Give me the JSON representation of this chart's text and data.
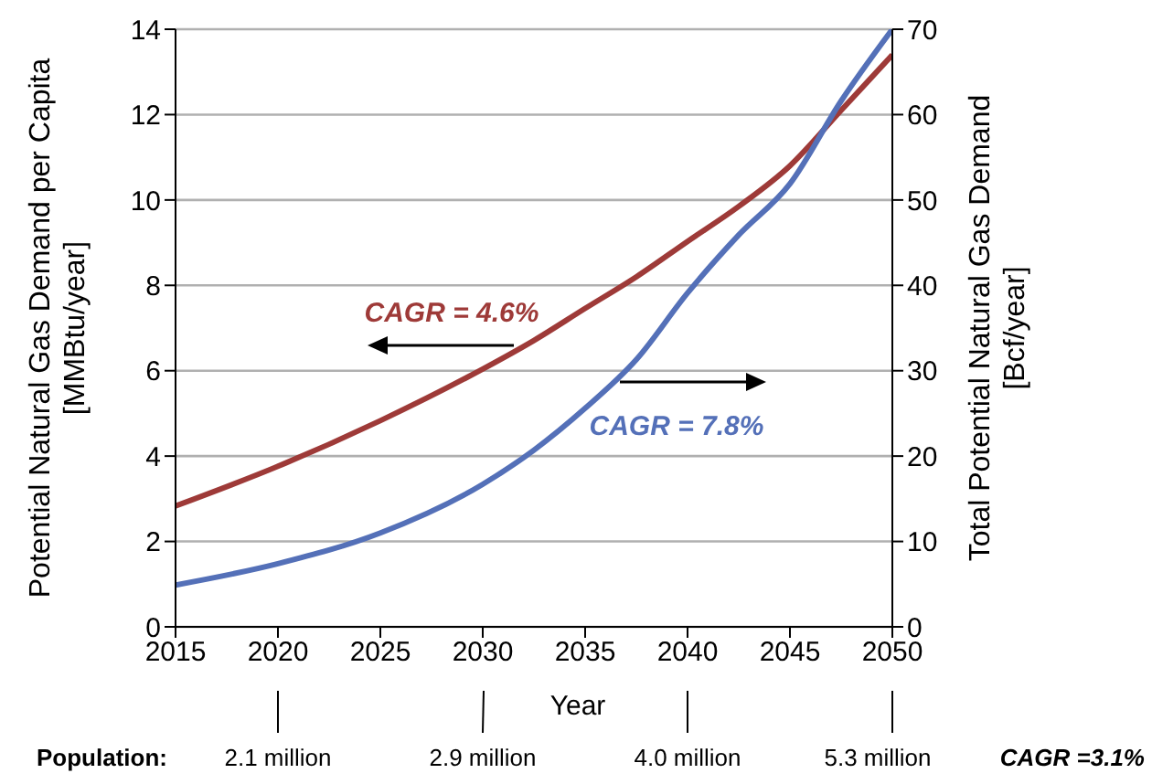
{
  "chart_data": {
    "type": "line",
    "x": [
      2015,
      2020,
      2025,
      2030,
      2032.5,
      2035,
      2037.5,
      2040,
      2042.5,
      2045,
      2047.5,
      2050
    ],
    "series": [
      {
        "color": "#9e3a38",
        "values": [
          2.83,
          3.76,
          4.83,
          6.04,
          6.71,
          7.46,
          8.2,
          9.03,
          9.85,
          10.8,
          12.1,
          13.4
        ]
      },
      {
        "color": "#5470b8",
        "axis": "y2",
        "values": [
          4.9,
          7.4,
          11,
          16.7,
          20.7,
          25.6,
          31.3,
          39.1,
          45.9,
          51.9,
          61.6,
          70
        ]
      }
    ],
    "xlim": [
      2015,
      2050
    ],
    "xticks": [
      2015,
      2020,
      2025,
      2030,
      2035,
      2040,
      2045,
      2050
    ],
    "ylim": [
      0,
      14
    ],
    "yticks": [
      0,
      2,
      4,
      6,
      8,
      10,
      12,
      14
    ],
    "y2lim": [
      0,
      70
    ],
    "y2ticks": [
      0,
      10,
      20,
      30,
      40,
      50,
      60,
      70
    ],
    "xlabel": "Year",
    "ylabel": "Potential Natural Gas Demand per Capita [MMBtu/year]",
    "y2label": "Total Potential Natural Gas Demand [Bcf/year]",
    "grid": "y",
    "marker": "none",
    "line_style": "solid",
    "annotations": [
      "CAGR = 4.6%",
      "CAGR = 7.8%",
      "Population:",
      "2.1 million",
      "2.9 million",
      "4.0 million",
      "5.3 million",
      "CAGR =3.1%"
    ]
  }
}
